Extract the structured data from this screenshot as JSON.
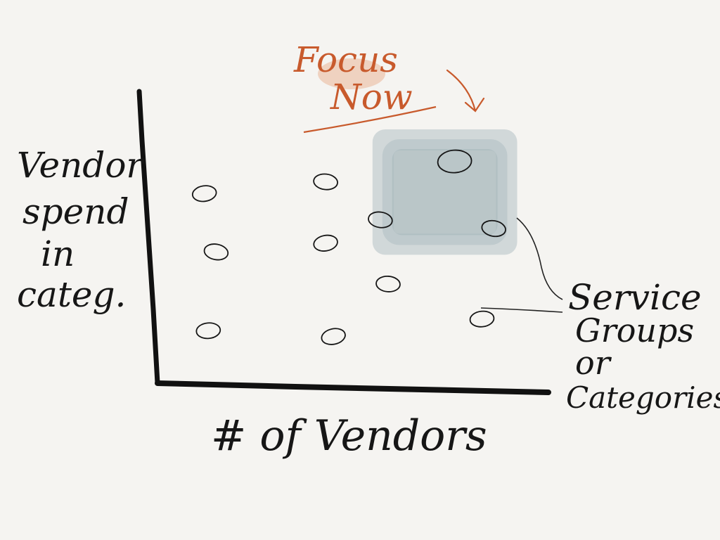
{
  "chart_data": {
    "type": "scatter",
    "title": "",
    "xlabel": "# of Vendors",
    "ylabel_lines": [
      "Vendor",
      "spend",
      "in",
      "categ."
    ],
    "xlim": [
      0,
      10
    ],
    "ylim": [
      0,
      10
    ],
    "grid": false,
    "points": [
      {
        "x": 1.2,
        "y": 6.5
      },
      {
        "x": 1.5,
        "y": 4.5
      },
      {
        "x": 1.3,
        "y": 1.8
      },
      {
        "x": 4.3,
        "y": 6.9
      },
      {
        "x": 4.3,
        "y": 4.8
      },
      {
        "x": 5.9,
        "y": 3.4
      },
      {
        "x": 4.5,
        "y": 1.6
      },
      {
        "x": 5.7,
        "y": 5.6
      },
      {
        "x": 7.6,
        "y": 7.6
      },
      {
        "x": 8.6,
        "y": 5.3
      },
      {
        "x": 8.3,
        "y": 2.2
      }
    ],
    "highlight_region": {
      "x": [
        5.5,
        9.2
      ],
      "y": [
        4.4,
        8.7
      ]
    },
    "annotations": {
      "focus": {
        "lines": [
          "Focus",
          "Now"
        ],
        "color": "#c85a2c"
      },
      "legend": {
        "lines": [
          "Service",
          "Groups",
          "or",
          "Categories"
        ]
      }
    },
    "colors": {
      "ink": "#161616",
      "region": "#8ea4ab",
      "accent": "#c85a2c",
      "paper": "#f5f4f1"
    }
  }
}
